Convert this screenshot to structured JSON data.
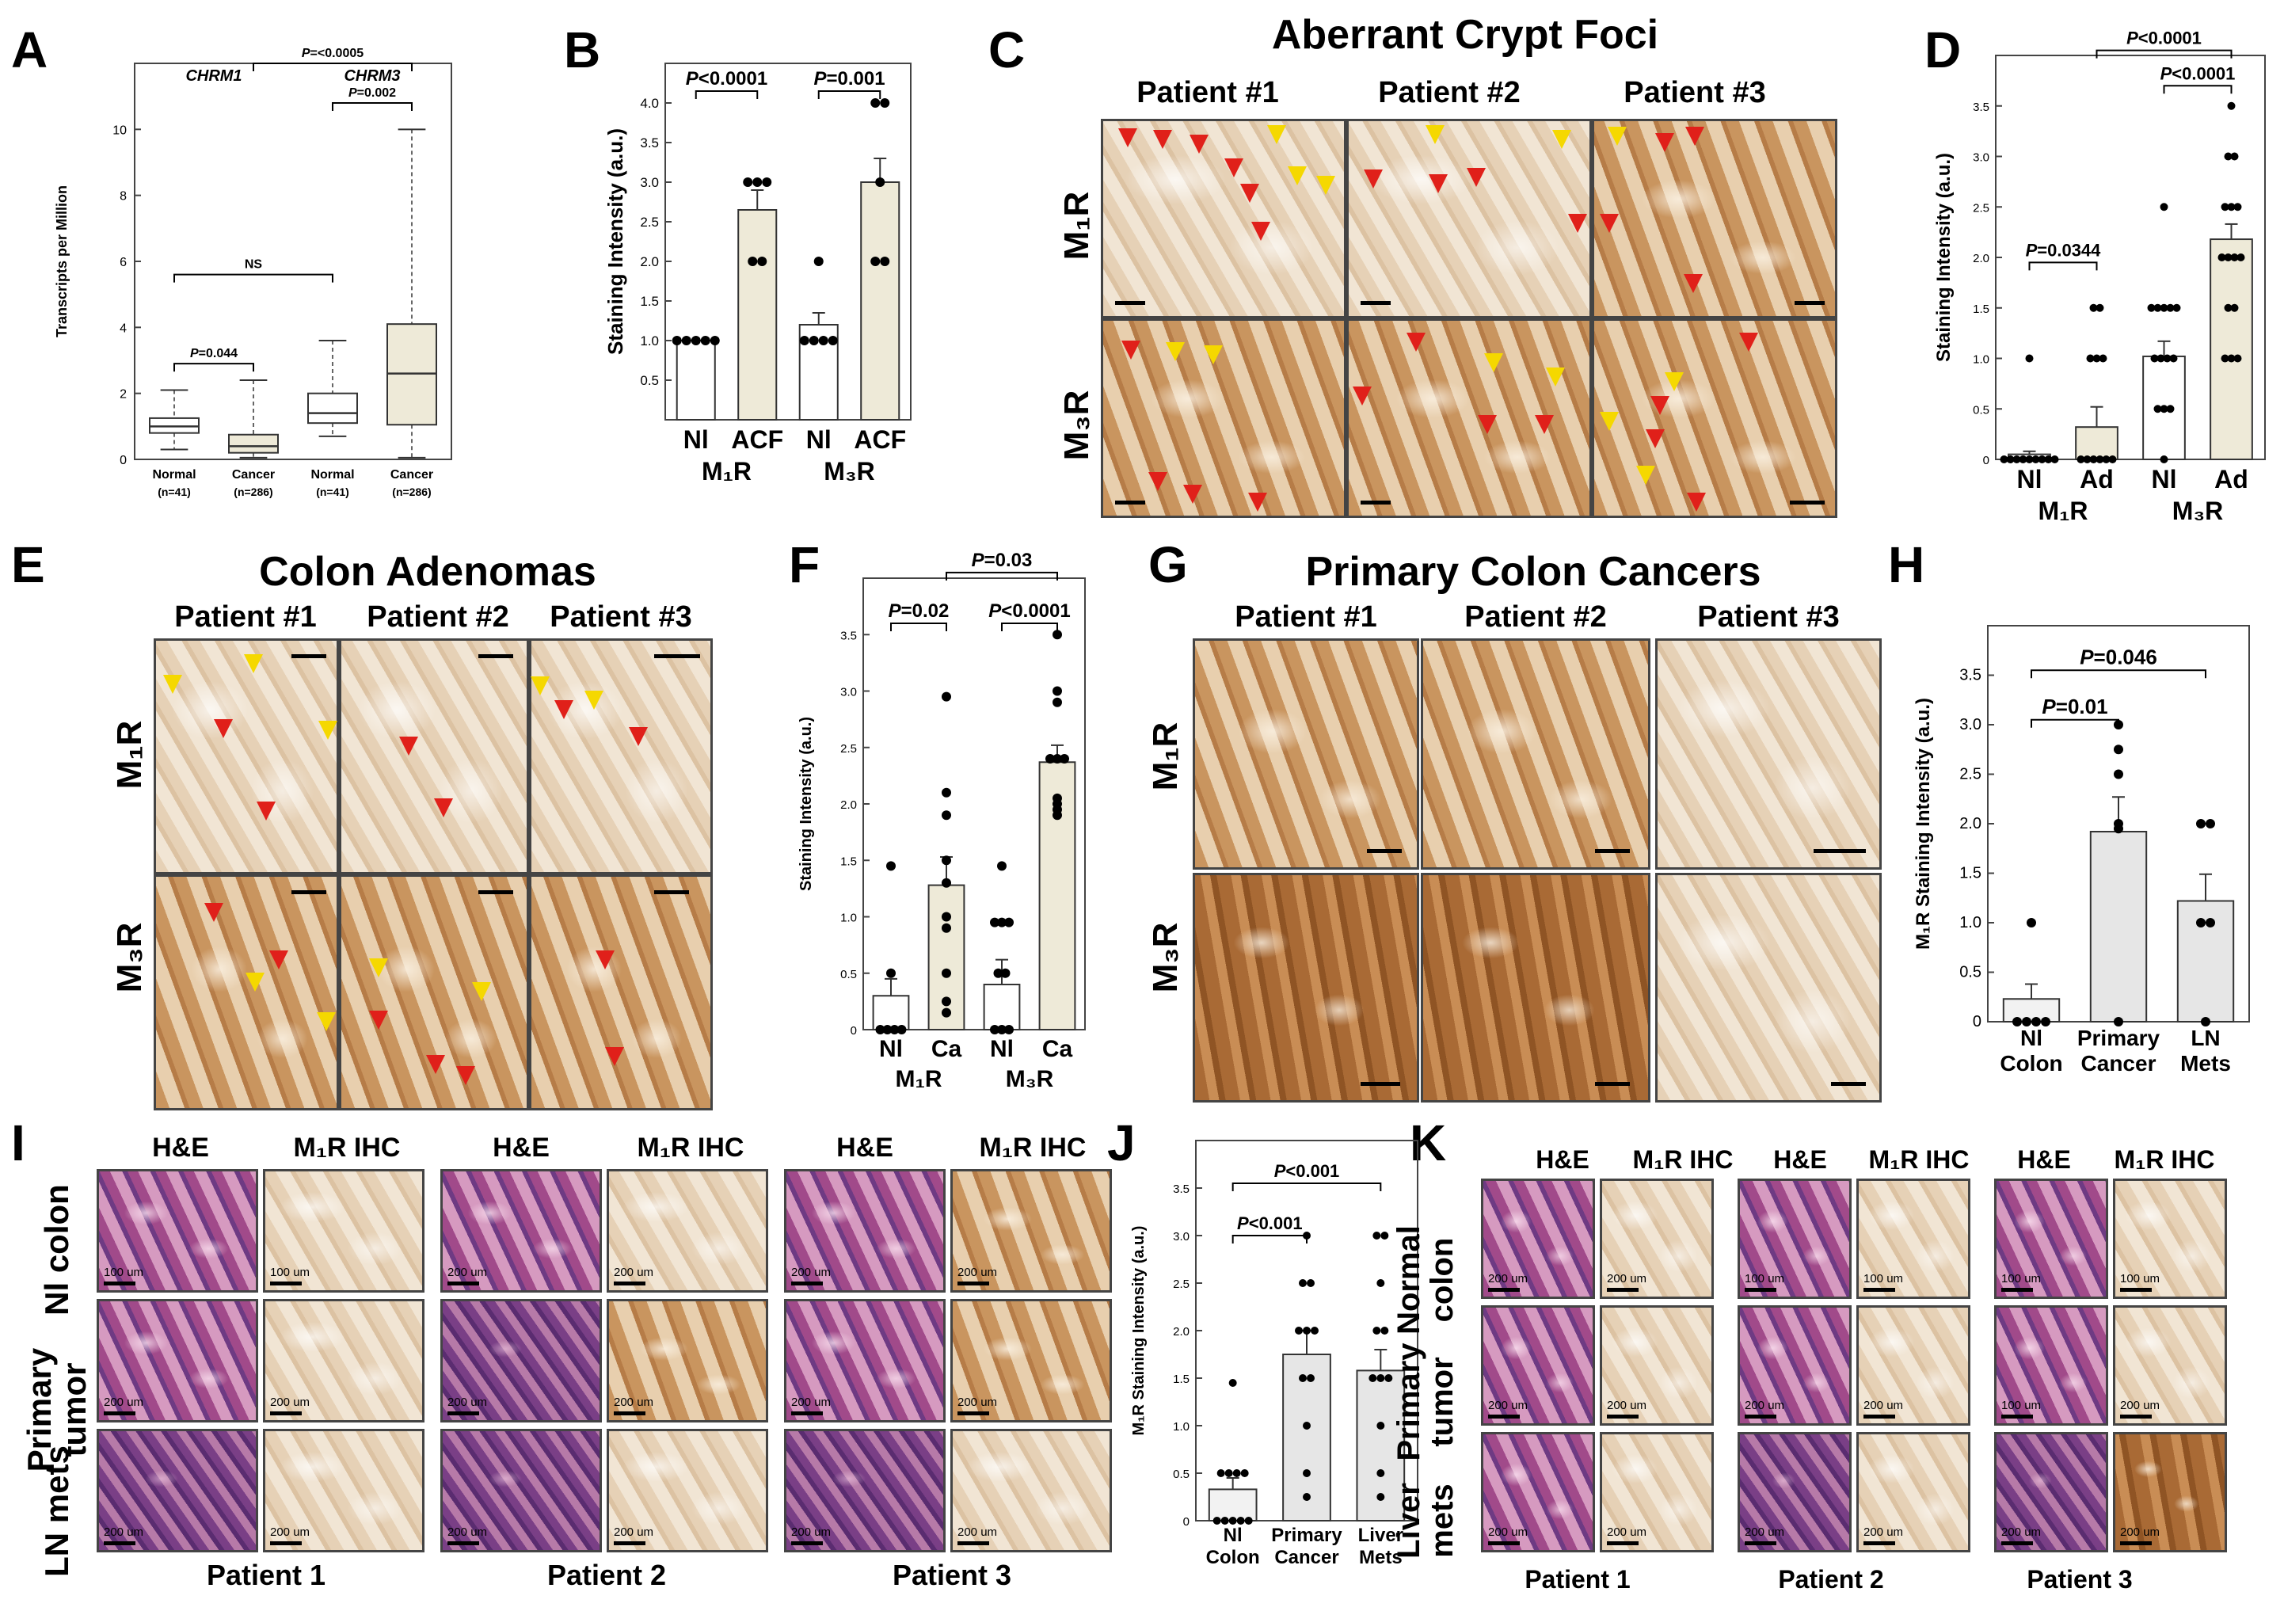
{
  "panel_labels": [
    "A",
    "B",
    "C",
    "D",
    "E",
    "F",
    "G",
    "H",
    "I",
    "J",
    "K"
  ],
  "panel_c": {
    "title": "Aberrant Crypt Foci",
    "columns": [
      "Patient  #1",
      "Patient  #2",
      "Patient  #3"
    ],
    "rows": [
      "M₁R",
      "M₃R"
    ]
  },
  "panel_e": {
    "title": "Colon Adenomas",
    "columns": [
      "Patient #1",
      "Patient #2",
      "Patient #3"
    ],
    "rows": [
      "M₁R",
      "M₃R"
    ]
  },
  "panel_g": {
    "title": "Primary Colon Cancers",
    "columns": [
      "Patient #1",
      "Patient #2",
      "Patient #3"
    ],
    "rows": [
      "M₁R",
      "M₃R"
    ]
  },
  "panel_i": {
    "column_heads": [
      "H&E",
      "M₁R IHC",
      "H&E",
      "M₁R IHC",
      "H&E",
      "M₁R IHC"
    ],
    "row_heads": [
      "Nl colon",
      "Primary tumor",
      "LN mets"
    ],
    "patients": [
      "Patient 1",
      "Patient 2",
      "Patient 3"
    ],
    "scale_labels": [
      "100 um",
      "100 um",
      "200 um",
      "200 um",
      "200 um",
      "200 um",
      "200 um",
      "200 um",
      "200 um",
      "200 um",
      "200 um",
      "200 um",
      "200 um",
      "200 um",
      "200 um",
      "200 um",
      "200 um",
      "200 um"
    ]
  },
  "panel_k": {
    "column_heads": [
      "H&E",
      "M₁R IHC",
      "H&E",
      "M₁R IHC",
      "H&E",
      "M₁R IHC"
    ],
    "row_heads": [
      "Normal colon",
      "Primary tumor",
      "Liver mets"
    ],
    "patients": [
      "Patient 1",
      "Patient 2",
      "Patient 3"
    ],
    "scale_labels": [
      "200 um",
      "200 um",
      "100 um",
      "100 um",
      "100 um",
      "100 um",
      "200 um",
      "200 um",
      "200 um",
      "200 um",
      "100 um",
      "200 um",
      "200 um",
      "200 um",
      "200 um",
      "200 um",
      "200 um",
      "200 um"
    ]
  },
  "chart_data": [
    {
      "panel": "A",
      "type": "box",
      "ylabel": "Transcripts per Million",
      "ylim": [
        0,
        12
      ],
      "yticks": [
        0,
        2,
        4,
        6,
        8,
        10
      ],
      "group_labels": [
        "CHRM1",
        "CHRM3"
      ],
      "categories": [
        "Normal",
        "Cancer",
        "Normal",
        "Cancer"
      ],
      "sublabels": [
        "(n=41)",
        "(n=286)",
        "(n=41)",
        "(n=286)"
      ],
      "boxes": [
        {
          "min": 0.3,
          "q1": 0.8,
          "median": 1.0,
          "q3": 1.25,
          "max": 2.1
        },
        {
          "min": 0.05,
          "q1": 0.2,
          "median": 0.4,
          "q3": 0.75,
          "max": 2.4
        },
        {
          "min": 0.7,
          "q1": 1.1,
          "median": 1.4,
          "q3": 2.0,
          "max": 3.6
        },
        {
          "min": 0.05,
          "q1": 1.05,
          "median": 2.6,
          "q3": 4.1,
          "max": 10.0
        }
      ],
      "annotations": [
        {
          "text": "P=0.044",
          "from": 0,
          "to": 1,
          "y": 2.9
        },
        {
          "text": "NS",
          "from": 0,
          "to": 2,
          "y": 5.6
        },
        {
          "text": "P=0.002",
          "from": 2,
          "to": 3,
          "y": 10.8
        },
        {
          "text": "P=<0.0005",
          "from": 1,
          "to": 3,
          "y": 12.0
        }
      ]
    },
    {
      "panel": "B",
      "type": "bar",
      "ylabel": "Staining Intensity (a.u.)",
      "ylim": [
        0,
        4.5
      ],
      "yticks": [
        0.5,
        1.0,
        1.5,
        2.0,
        2.5,
        3.0,
        3.5,
        4.0
      ],
      "categories": [
        "Nl",
        "ACF",
        "Nl",
        "ACF"
      ],
      "group_labels": [
        "M₁R",
        "M₃R"
      ],
      "values": [
        1.0,
        2.65,
        1.2,
        3.0
      ],
      "errors": [
        0.0,
        0.25,
        0.15,
        0.3
      ],
      "fills": [
        "#ffffff",
        "#eeead8",
        "#ffffff",
        "#eeead8"
      ],
      "points": [
        [
          1,
          1,
          1,
          1,
          1
        ],
        [
          3,
          3,
          3,
          2,
          2
        ],
        [
          1,
          1,
          1,
          1,
          2
        ],
        [
          4,
          4,
          3,
          2,
          2
        ]
      ],
      "annotations": [
        {
          "text": "P<0.0001",
          "from": 0,
          "to": 1,
          "y": 4.15
        },
        {
          "text": "P=0.001",
          "from": 2,
          "to": 3,
          "y": 4.15
        }
      ]
    },
    {
      "panel": "D",
      "type": "bar",
      "ylabel": "Staining Intensity (a.u.)",
      "ylim": [
        0,
        4.0
      ],
      "yticks": [
        0,
        0.5,
        1.0,
        1.5,
        2.0,
        2.5,
        3.0,
        3.5
      ],
      "categories": [
        "Nl",
        "Ad",
        "Nl",
        "Ad"
      ],
      "group_labels": [
        "M₁R",
        "M₃R"
      ],
      "values": [
        0.05,
        0.32,
        1.02,
        2.18
      ],
      "errors": [
        0.03,
        0.2,
        0.15,
        0.15
      ],
      "fills": [
        "#ffffff",
        "#eeead8",
        "#ffffff",
        "#eeead8"
      ],
      "points": [
        [
          0,
          0,
          0,
          0,
          0,
          0,
          0,
          0,
          0,
          1
        ],
        [
          0,
          0,
          0,
          0,
          0,
          0,
          1,
          1,
          1,
          1.5,
          1.5
        ],
        [
          0,
          0.5,
          0.5,
          0.5,
          1,
          1,
          1,
          1,
          1.5,
          1.5,
          1.5,
          1.5,
          1.5,
          2.5
        ],
        [
          1,
          1,
          1,
          1.5,
          1.5,
          2,
          2,
          2,
          2,
          2.5,
          2.5,
          2.5,
          3,
          3,
          3.5
        ]
      ],
      "annotations": [
        {
          "text": "P=0.0344",
          "from": 0,
          "to": 1,
          "y": 1.95
        },
        {
          "text": "P<0.0001",
          "from": 2,
          "to": 3,
          "y": 3.7
        },
        {
          "text": "P<0.0001",
          "from": 1,
          "to": 3,
          "y": 4.05
        }
      ]
    },
    {
      "panel": "F",
      "type": "bar",
      "ylabel": "Staining Intensity (a.u.)",
      "ylim": [
        0,
        4.0
      ],
      "yticks": [
        0,
        0.5,
        1.0,
        1.5,
        2.0,
        2.5,
        3.0,
        3.5
      ],
      "categories": [
        "Nl",
        "Ca",
        "Nl",
        "Ca"
      ],
      "group_labels": [
        "M₁R",
        "M₃R"
      ],
      "values": [
        0.3,
        1.28,
        0.4,
        2.37
      ],
      "errors": [
        0.15,
        0.25,
        0.22,
        0.15
      ],
      "fills": [
        "#ffffff",
        "#eeead8",
        "#ffffff",
        "#eeead8"
      ],
      "points": [
        [
          0,
          0,
          0,
          0,
          0.5,
          1.45
        ],
        [
          0.15,
          0.25,
          0.5,
          0.9,
          1,
          1.3,
          1.5,
          1.9,
          2.1,
          2.95
        ],
        [
          0,
          0,
          0,
          0.5,
          0.5,
          0.95,
          0.95,
          0.95,
          1.45
        ],
        [
          1.9,
          1.95,
          2,
          2.05,
          2.4,
          2.4,
          2.4,
          2.9,
          3.0,
          3.5
        ]
      ],
      "annotations": [
        {
          "text": "P=0.02",
          "from": 0,
          "to": 1,
          "y": 3.6
        },
        {
          "text": "P<0.0001",
          "from": 2,
          "to": 3,
          "y": 3.6
        },
        {
          "text": "P=0.03",
          "from": 1,
          "to": 3,
          "y": 4.05
        }
      ]
    },
    {
      "panel": "H",
      "type": "bar",
      "ylabel": "M₁R Staining Intensity (a.u.)",
      "ylim": [
        0,
        4.0
      ],
      "yticks": [
        0,
        0.5,
        1.0,
        1.5,
        2.0,
        2.5,
        3.0,
        3.5
      ],
      "categories": [
        "Nl Colon",
        "Primary Cancer",
        "LN Mets"
      ],
      "values": [
        0.23,
        1.92,
        1.22
      ],
      "errors": [
        0.15,
        0.35,
        0.27
      ],
      "fills": [
        "#f2f2f2",
        "#e6e6e6",
        "#e6e6e6"
      ],
      "points": [
        [
          0,
          0,
          0,
          0,
          1.0
        ],
        [
          0,
          1.95,
          2.0,
          2.5,
          2.75,
          3.0
        ],
        [
          0,
          1.0,
          1.0,
          2.0,
          2.0
        ]
      ],
      "annotations": [
        {
          "text": "P=0.01",
          "from": 0,
          "to": 1,
          "y": 3.05
        },
        {
          "text": "P=0.046",
          "from": 0,
          "to": 2,
          "y": 3.55
        }
      ]
    },
    {
      "panel": "J",
      "type": "bar",
      "ylabel": "M₁R Staining Intensity (a.u.)",
      "ylim": [
        0,
        4.0
      ],
      "yticks": [
        0,
        0.5,
        1.0,
        1.5,
        2.0,
        2.5,
        3.0,
        3.5
      ],
      "categories": [
        "Nl Colon",
        "Primary Cancer",
        "Liver Mets"
      ],
      "values": [
        0.33,
        1.75,
        1.58
      ],
      "errors": [
        0.12,
        0.25,
        0.22
      ],
      "fills": [
        "#f2f2f2",
        "#e6e6e6",
        "#e6e6e6"
      ],
      "points": [
        [
          0,
          0,
          0,
          0,
          0,
          0.5,
          0.5,
          0.5,
          0.5,
          1.45
        ],
        [
          0.25,
          0.5,
          1.0,
          1.5,
          1.5,
          2.0,
          2.0,
          2.0,
          2.5,
          2.5,
          3.0
        ],
        [
          0.25,
          0.5,
          1.0,
          1.5,
          1.5,
          1.5,
          2.0,
          2.0,
          2.5,
          3.0,
          3.0
        ]
      ],
      "annotations": [
        {
          "text": "P<0.001",
          "from": 0,
          "to": 1,
          "y": 3.0
        },
        {
          "text": "P<0.001",
          "from": 0,
          "to": 2,
          "y": 3.55
        }
      ]
    }
  ]
}
